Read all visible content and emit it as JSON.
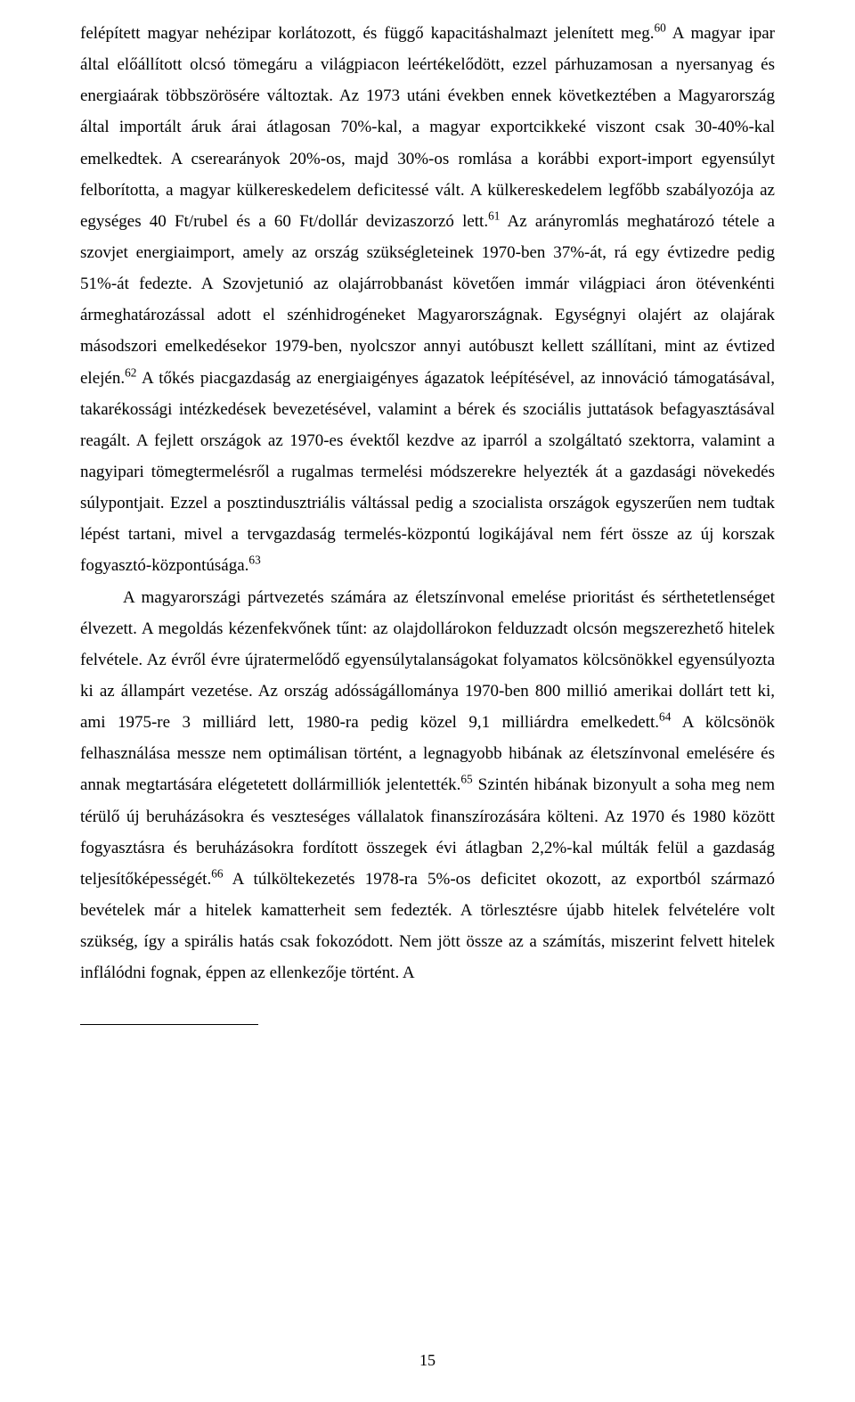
{
  "body": {
    "para1_pre": "felépített magyar nehézipar korlátozott, és függő kapacitáshalmazt jelenített meg.",
    "fn60": "60",
    "para1_post_a": " A magyar ipar által előállított olcsó tömegáru a világpiacon leértékelődött, ezzel párhuzamosan a nyersanyag és energiaárak többszörösére változtak. Az 1973 utáni években ennek következtében a Magyarország által importált áruk árai átlagosan 70%-kal, a magyar exportcikkeké viszont csak 30-40%-kal emelkedtek. A cserearányok 20%-os, majd 30%-os romlása a korábbi export-import egyensúlyt felborította, a magyar külkereskedelem deficitessé vált. A külkereskedelem legfőbb szabályozója az egységes 40 Ft/rubel és a 60 Ft/dollár devizaszorzó lett.",
    "fn61": "61",
    "para1_post_b": " Az arányromlás meghatározó tétele a szovjet energiaimport, amely az ország szükségleteinek 1970-ben 37%-át, rá egy évtizedre pedig 51%-át fedezte. A Szovjetunió az olajárrobbanást követően immár világpiaci áron ötévenkénti ármeghatározással adott el szénhidrogéneket Magyarországnak. Egységnyi olajért az olajárak másodszori emelkedésekor 1979-ben, nyolcszor annyi autóbuszt kellett szállítani, mint az évtized elején.",
    "fn62": "62",
    "para1_post_c": " A tőkés piacgazdaság az energiaigényes ágazatok leépítésével, az innováció támogatásával, takarékossági intézkedések bevezetésével, valamint a bérek és szociális juttatások befagyasztásával reagált. A fejlett országok az 1970-es évektől kezdve az iparról a szolgáltató szektorra, valamint a nagyipari tömegtermelésről a rugalmas termelési módszerekre helyezték át a gazdasági növekedés súlypontjait. Ezzel a posztindusztriális váltással pedig a szocialista országok egyszerűen nem tudtak lépést tartani, mivel a tervgazdaság termelés-központú logikájával nem fért össze az új korszak fogyasztó-központúsága.",
    "fn63": "63",
    "para2_a": "A magyarországi pártvezetés számára az életszínvonal emelése prioritást és sérthetetlenséget élvezett. A megoldás kézenfekvőnek tűnt: az olajdollárokon felduzzadt olcsón megszerezhető hitelek felvétele. Az évről évre újratermelődő egyensúlytalanságokat folyamatos kölcsönökkel egyensúlyozta ki az állampárt vezetése. Az ország adósságállománya 1970-ben 800 millió amerikai dollárt tett ki, ami 1975-re 3 milliárd lett, 1980-ra pedig közel 9,1 milliárdra emelkedett.",
    "fn64": "64",
    "para2_b": " A kölcsönök felhasználása messze nem optimálisan történt, a legnagyobb hibának az életszínvonal emelésére és annak megtartására elégetetett dollármilliók jelentették.",
    "fn65": "65",
    "para2_c": " Szintén hibának bizonyult a soha meg nem térülő új beruházásokra és veszteséges vállalatok finanszírozására költeni. Az 1970 és 1980 között fogyasztásra és beruházásokra fordított összegek évi átlagban 2,2%-kal múlták felül a gazdaság teljesítőképességét.",
    "fn66": "66",
    "para2_d": " A túlköltekezetés 1978-ra 5%-os deficitet okozott, az exportból származó bevételek már a hitelek kamatterheit sem fedezték. A törlesztésre újabb hitelek felvételére volt szükség, így a spirális hatás csak fokozódott. Nem jött össze az a számítás, miszerint felvett hitelek inflálódni fognak, éppen az ellenkezője történt. A"
  },
  "page_number": "15"
}
